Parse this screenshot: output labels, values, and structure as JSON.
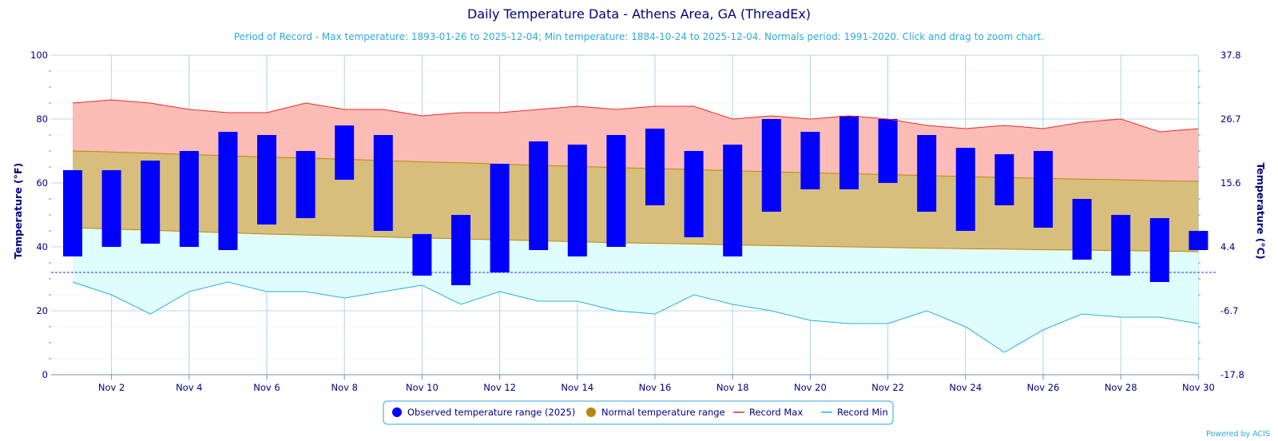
{
  "chart_data": {
    "type": "bar",
    "title": "Daily Temperature Data - Athens Area, GA (ThreadEx)",
    "subtitle": "Period of Record - Max temperature: 1893-01-26 to 2025-12-04; Min temperature: 1884-10-24 to 2025-12-04. Normals period: 1991-2020. Click and drag to zoom chart.",
    "xlabel": "",
    "ylabel": "Temperature (°F)",
    "ylabel_right": "Temperature (°C)",
    "ylim": [
      0,
      100
    ],
    "ylim_right": [
      -17.8,
      37.8
    ],
    "y_ticks": [
      0,
      20,
      40,
      60,
      80,
      100
    ],
    "y_ticks_right": [
      "-17.8",
      "-6.7",
      "4.4",
      "15.6",
      "26.7",
      "37.8"
    ],
    "x": [
      1,
      2,
      3,
      4,
      5,
      6,
      7,
      8,
      9,
      10,
      11,
      12,
      13,
      14,
      15,
      16,
      17,
      18,
      19,
      20,
      21,
      22,
      23,
      24,
      25,
      26,
      27,
      28,
      29,
      30
    ],
    "x_tick_labels": [
      "Nov 2",
      "Nov 4",
      "Nov 6",
      "Nov 8",
      "Nov 10",
      "Nov 12",
      "Nov 14",
      "Nov 16",
      "Nov 18",
      "Nov 20",
      "Nov 22",
      "Nov 24",
      "Nov 26",
      "Nov 28",
      "Nov 30"
    ],
    "x_tick_days": [
      2,
      4,
      6,
      8,
      10,
      12,
      14,
      16,
      18,
      20,
      22,
      24,
      26,
      28,
      30
    ],
    "freezing_line": 32,
    "grid": true,
    "legend_position": "bottom-center",
    "series": [
      {
        "name": "Observed temperature range (2025)",
        "type": "range-bar",
        "color": "#0000ff",
        "high": [
          64,
          64,
          67,
          70,
          76,
          75,
          70,
          78,
          75,
          44,
          50,
          66,
          73,
          72,
          75,
          77,
          70,
          72,
          80,
          76,
          81,
          80,
          75,
          71,
          69,
          70,
          55,
          50,
          49,
          45
        ],
        "low": [
          37,
          40,
          41,
          40,
          39,
          47,
          49,
          61,
          45,
          31,
          28,
          32,
          39,
          37,
          40,
          53,
          43,
          37,
          51,
          58,
          58,
          60,
          51,
          45,
          53,
          46,
          36,
          31,
          29,
          39
        ]
      },
      {
        "name": "Normal temperature range",
        "type": "range-area",
        "color": "#b8860b",
        "high": [
          70,
          69.7,
          69.3,
          68.9,
          68.5,
          68.1,
          67.8,
          67.4,
          67.0,
          66.6,
          66.3,
          65.9,
          65.5,
          65.2,
          64.8,
          64.5,
          64.2,
          63.8,
          63.5,
          63.2,
          62.9,
          62.6,
          62.3,
          62.0,
          61.7,
          61.4,
          61.2,
          61.0,
          60.7,
          60.5
        ],
        "low": [
          46,
          45.6,
          45.2,
          44.8,
          44.4,
          44.0,
          43.7,
          43.4,
          43.1,
          42.8,
          42.5,
          42.2,
          41.9,
          41.6,
          41.3,
          41.1,
          40.9,
          40.6,
          40.4,
          40.2,
          40.0,
          39.8,
          39.6,
          39.4,
          39.3,
          39.1,
          39.0,
          38.8,
          38.7,
          38.5
        ]
      },
      {
        "name": "Record Max",
        "type": "line",
        "color": "#ee2a2a",
        "values": [
          85,
          86,
          85,
          83,
          82,
          82,
          85,
          83,
          83,
          81,
          82,
          82,
          83,
          84,
          83,
          84,
          84,
          80,
          81,
          80,
          81,
          80,
          78,
          77,
          78,
          77,
          79,
          80,
          76,
          77
        ]
      },
      {
        "name": "Record Min",
        "type": "line",
        "color": "#29aee6",
        "values": [
          29,
          25,
          19,
          26,
          29,
          26,
          26,
          24,
          26,
          28,
          22,
          26,
          23,
          23,
          20,
          19,
          25,
          22,
          20,
          17,
          16,
          16,
          20,
          15,
          7,
          14,
          19,
          18,
          18,
          16
        ]
      }
    ],
    "legend": [
      {
        "label": "Observed temperature range (2025)",
        "marker": "circle",
        "color": "#0000ff"
      },
      {
        "label": "Normal temperature range",
        "marker": "circle",
        "color": "#b8860b"
      },
      {
        "label": "Record Max",
        "marker": "line",
        "color": "#ee2a2a"
      },
      {
        "label": "Record Min",
        "marker": "line",
        "color": "#29aee6"
      }
    ],
    "credit": "Powered by ACIS"
  }
}
